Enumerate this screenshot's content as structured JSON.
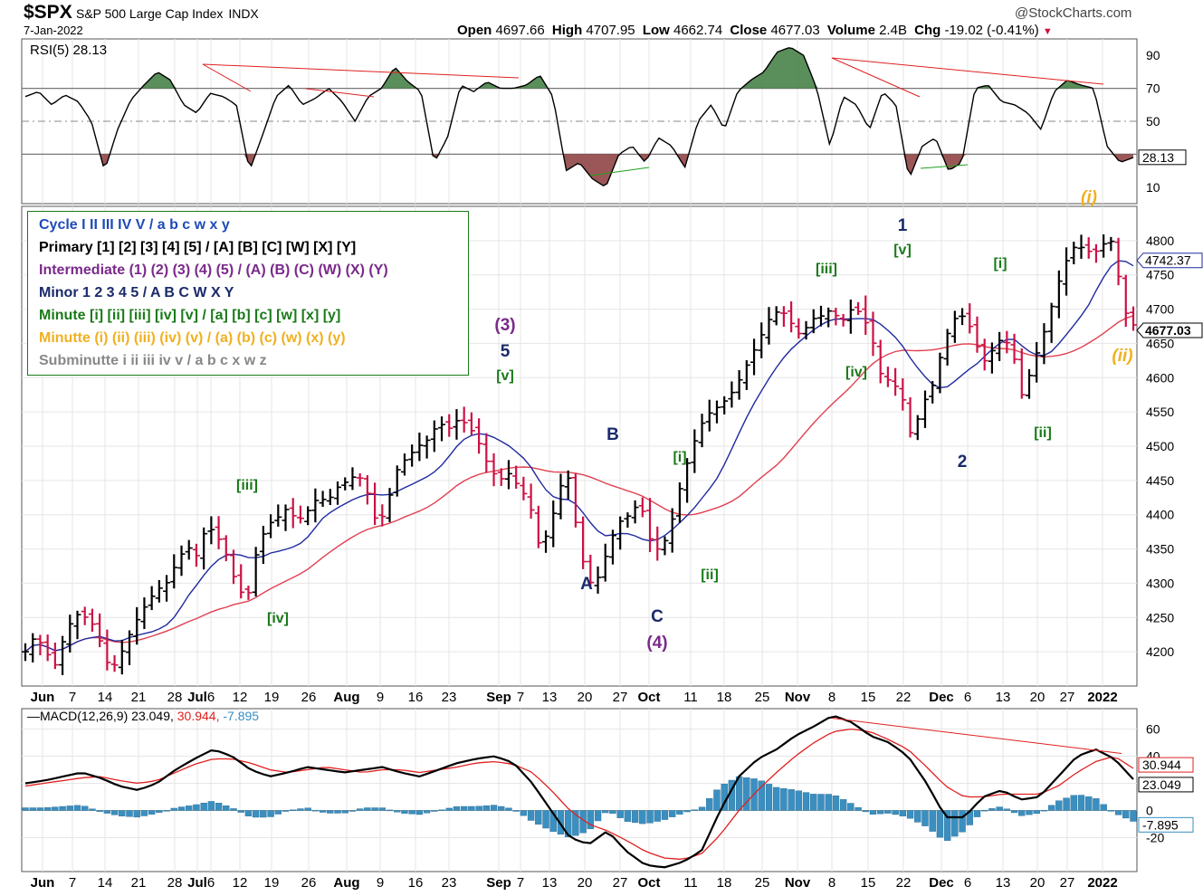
{
  "header": {
    "symbol": "$SPX",
    "name": "S&P 500 Large Cap Index",
    "exchange": "INDX",
    "date": "7-Jan-2022",
    "source": "@StockCharts.com",
    "open_label": "Open",
    "open": "4697.66",
    "high_label": "High",
    "high": "4707.95",
    "low_label": "Low",
    "low": "4662.74",
    "close_label": "Close",
    "close": "4677.03",
    "volume_label": "Volume",
    "volume": "2.4B",
    "chg_label": "Chg",
    "chg": "-19.02 (-0.41%)"
  },
  "legend": {
    "lines": [
      {
        "text": "Cycle I II III IV V / a b c w x y",
        "color": "#1f4bb8"
      },
      {
        "text": "Primary [1] [2] [3] [4] [5] / [A] [B] [C] [W] [X] [Y]",
        "color": "#000000"
      },
      {
        "text": "Intermediate (1) (2) (3) (4) (5) / (A) (B) (C) (W) (X) (Y)",
        "color": "#7a2a8a"
      },
      {
        "text": "Minor 1 2 3 4 5 / A B C W X Y",
        "color": "#1a2a6a"
      },
      {
        "text": "Minute [i] [ii] [iii] [iv] [v] / [a] [b] [c] [w] [x] [y]",
        "color": "#1a7a1a"
      },
      {
        "text": "Minutte (i) (ii) (iii) (iv) (v) / (a) (b) (c) (w) (x) (y)",
        "color": "#f0b020"
      },
      {
        "text": "Subminutte i ii iii iv v / a b c x w z",
        "color": "#888888"
      }
    ]
  },
  "colors": {
    "up_bar": "#000000",
    "down_bar": "#cc1144",
    "ma_fast": "#1f2aa0",
    "ma_slow": "#e04050",
    "rsi_line": "#000000",
    "rsi_fill_over": "#3d7a3d",
    "rsi_fill_under": "#8a3a3a",
    "macd_line": "#000000",
    "signal_line": "#e02020",
    "histogram": "#3a8fc0",
    "trendline_red": "#e02020",
    "trendline_green": "#20a020",
    "wave_green": "#1a7a1a",
    "wave_navy": "#1a2a6a",
    "wave_purple": "#7a2a8a",
    "wave_gold": "#f0b020"
  },
  "chart_data": [
    {
      "panel": "price",
      "type": "ohlc",
      "title": "$SPX S&P 500 Large Cap Index INDX",
      "x_tick_labels": [
        "Jun",
        "7",
        "14",
        "21",
        "28",
        "Jul",
        "6",
        "12",
        "19",
        "26",
        "Aug",
        "9",
        "16",
        "23",
        "Sep",
        "7",
        "13",
        "20",
        "27",
        "Oct",
        "11",
        "18",
        "25",
        "Nov",
        "8",
        "15",
        "22",
        "Dec",
        "6",
        "13",
        "20",
        "27",
        "2022"
      ],
      "ylim": [
        4150,
        4850
      ],
      "yticks": [
        4200,
        4250,
        4300,
        4350,
        4400,
        4450,
        4500,
        4550,
        4600,
        4650,
        4700,
        4750,
        4800
      ],
      "last_value_labels": [
        {
          "name": "MA fast",
          "value": "4742.37"
        },
        {
          "name": "Close",
          "value": "4677.03"
        }
      ],
      "close_key_points": [
        4200,
        4225,
        4200,
        4180,
        4230,
        4255,
        4250,
        4235,
        4185,
        4180,
        4215,
        4245,
        4270,
        4290,
        4300,
        4330,
        4355,
        4340,
        4385,
        4370,
        4340,
        4295,
        4275,
        4350,
        4385,
        4395,
        4410,
        4390,
        4405,
        4425,
        4420,
        4440,
        4450,
        4460,
        4430,
        4380,
        4420,
        4470,
        4485,
        4500,
        4510,
        4535,
        4525,
        4540,
        4530,
        4505,
        4470,
        4450,
        4460,
        4440,
        4420,
        4355,
        4375,
        4440,
        4455,
        4350,
        4300,
        4310,
        4360,
        4390,
        4400,
        4420,
        4365,
        4345,
        4380,
        4440,
        4490,
        4530,
        4550,
        4560,
        4575,
        4600,
        4630,
        4660,
        4690,
        4700,
        4680,
        4660,
        4685,
        4690,
        4700,
        4680,
        4700,
        4695,
        4660,
        4600,
        4595,
        4575,
        4510,
        4560,
        4585,
        4640,
        4685,
        4690,
        4670,
        4620,
        4640,
        4660,
        4640,
        4570,
        4620,
        4660,
        4710,
        4760,
        4790,
        4790,
        4780,
        4795,
        4800,
        4700,
        4677
      ]
    },
    {
      "panel": "rsi",
      "type": "line",
      "title": "RSI(5) 28.13",
      "ylim": [
        0,
        100
      ],
      "yticks": [
        10,
        30,
        50,
        70,
        90
      ],
      "last_value": "28.13",
      "key_points": [
        65,
        68,
        60,
        66,
        62,
        50,
        20,
        45,
        63,
        72,
        80,
        75,
        60,
        55,
        67,
        65,
        60,
        20,
        42,
        65,
        72,
        60,
        64,
        70,
        62,
        50,
        65,
        70,
        83,
        74,
        68,
        25,
        40,
        72,
        68,
        74,
        70,
        70,
        72,
        78,
        65,
        20,
        25,
        15,
        10,
        30,
        35,
        25,
        40,
        35,
        22,
        50,
        60,
        45,
        68,
        75,
        80,
        92,
        95,
        90,
        70,
        35,
        65,
        60,
        45,
        68,
        60,
        15,
        35,
        40,
        20,
        25,
        70,
        72,
        62,
        60,
        55,
        45,
        68,
        75,
        72,
        70,
        35,
        25,
        28
      ]
    },
    {
      "panel": "macd",
      "type": "line",
      "title": "MACD(12,26,9) 23.049, 30.944, -7.895",
      "ylim": [
        -45,
        75
      ],
      "yticks": [
        -20,
        0,
        20,
        40,
        60
      ],
      "last_values": {
        "macd": "23.049",
        "signal": "30.944",
        "histogram": "-7.895"
      },
      "macd_key_points": [
        20,
        22,
        25,
        28,
        24,
        18,
        15,
        20,
        30,
        38,
        45,
        40,
        30,
        25,
        28,
        32,
        30,
        28,
        30,
        32,
        28,
        25,
        30,
        35,
        38,
        40,
        35,
        20,
        0,
        -20,
        -25,
        -15,
        -30,
        -40,
        -42,
        -38,
        -30,
        0,
        25,
        38,
        45,
        55,
        62,
        70,
        65,
        55,
        50,
        40,
        20,
        -5,
        -5,
        10,
        15,
        8,
        10,
        25,
        40,
        45,
        38,
        23
      ],
      "signal_key_points": [
        18,
        20,
        22,
        24,
        25,
        22,
        20,
        22,
        28,
        34,
        38,
        38,
        35,
        30,
        28,
        30,
        32,
        30,
        28,
        30,
        30,
        28,
        30,
        32,
        35,
        36,
        34,
        28,
        15,
        0,
        -10,
        -15,
        -22,
        -30,
        -35,
        -36,
        -32,
        -18,
        0,
        15,
        28,
        40,
        50,
        58,
        60,
        58,
        52,
        45,
        32,
        18,
        10,
        10,
        12,
        12,
        12,
        18,
        28,
        36,
        40,
        31
      ],
      "histogram_key_points": [
        2,
        2,
        3,
        4,
        -1,
        -4,
        -5,
        -2,
        2,
        4,
        7,
        2,
        -5,
        -5,
        0,
        2,
        -2,
        -2,
        2,
        2,
        -2,
        -3,
        0,
        3,
        3,
        4,
        1,
        -8,
        -15,
        -20,
        -15,
        0,
        -8,
        -10,
        -7,
        -2,
        2,
        18,
        25,
        23,
        17,
        15,
        12,
        12,
        5,
        -3,
        -2,
        -5,
        -12,
        -23,
        -15,
        0,
        3,
        -4,
        -2,
        7,
        12,
        9,
        -2,
        -8
      ]
    }
  ],
  "wave_labels": [
    {
      "text": "[iii]",
      "color": "wave_green"
    },
    {
      "text": "[iv]",
      "color": "wave_green"
    },
    {
      "text": "(3)",
      "color": "wave_purple"
    },
    {
      "text": "5",
      "color": "wave_navy"
    },
    {
      "text": "[v]",
      "color": "wave_green"
    },
    {
      "text": "A",
      "color": "wave_navy"
    },
    {
      "text": "B",
      "color": "wave_navy"
    },
    {
      "text": "C",
      "color": "wave_navy"
    },
    {
      "text": "(4)",
      "color": "wave_purple"
    },
    {
      "text": "[i]",
      "color": "wave_green"
    },
    {
      "text": "[ii]",
      "color": "wave_green"
    },
    {
      "text": "[iii]",
      "color": "wave_green"
    },
    {
      "text": "[iv]",
      "color": "wave_green"
    },
    {
      "text": "1",
      "color": "wave_navy"
    },
    {
      "text": "[v]",
      "color": "wave_green"
    },
    {
      "text": "2",
      "color": "wave_navy"
    },
    {
      "text": "[i]",
      "color": "wave_green"
    },
    {
      "text": "[ii]",
      "color": "wave_green"
    },
    {
      "text": "(i)",
      "color": "wave_gold"
    },
    {
      "text": "(ii)",
      "color": "wave_gold"
    }
  ]
}
